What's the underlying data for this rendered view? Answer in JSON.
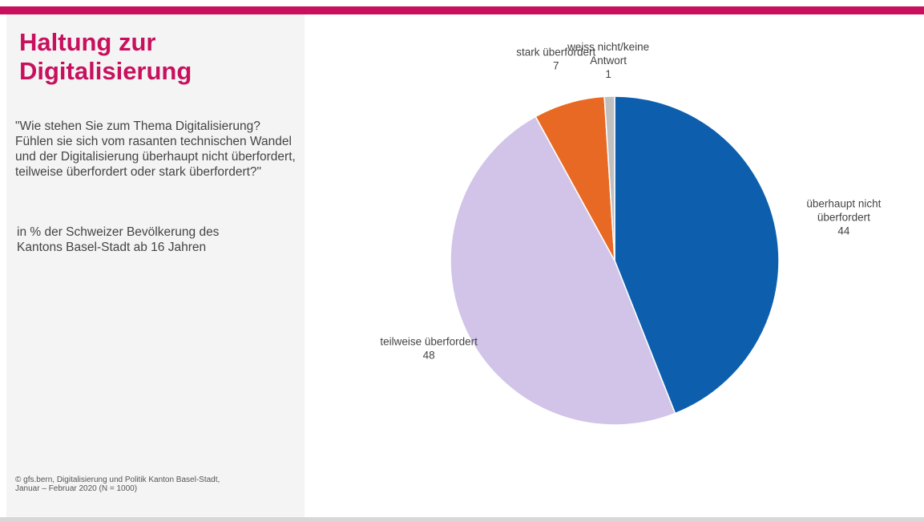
{
  "title": "Haltung zur Digitalisierung",
  "question": "\"Wie stehen Sie zum Thema Digitalisierung? Fühlen sie sich vom rasanten technischen Wandel und der Digitalisierung überhaupt nicht überfordert, teilweise überfordert oder stark überfordert?\"",
  "basis": "in % der Schweizer Bevölkerung des Kantons Basel-Stadt ab 16 Jahren",
  "source_line1": "© gfs.bern, Digitalisierung und Politik Kanton Basel-Stadt,",
  "source_line2": "Januar – Februar 2020 (N = 1000)",
  "colors": {
    "accent": "#c8105e",
    "sidebar_bg": "#f4f4f4"
  },
  "chart_data": {
    "type": "pie",
    "unit": "%",
    "slices": [
      {
        "label": "überhaupt nicht überfordert",
        "label_lines": [
          "überhaupt nicht",
          "überfordert"
        ],
        "value": 44,
        "color": "#0d5fae"
      },
      {
        "label": "teilweise überfordert",
        "label_lines": [
          "teilweise überfordert"
        ],
        "value": 48,
        "color": "#d1c4e8"
      },
      {
        "label": "stark überfordert",
        "label_lines": [
          "stark überfordert"
        ],
        "value": 7,
        "color": "#e86923"
      },
      {
        "label": "weiss nicht/keine Antwort",
        "label_lines": [
          "weiss nicht/keine",
          "Antwort"
        ],
        "value": 1,
        "color": "#c0c0c0"
      }
    ]
  }
}
